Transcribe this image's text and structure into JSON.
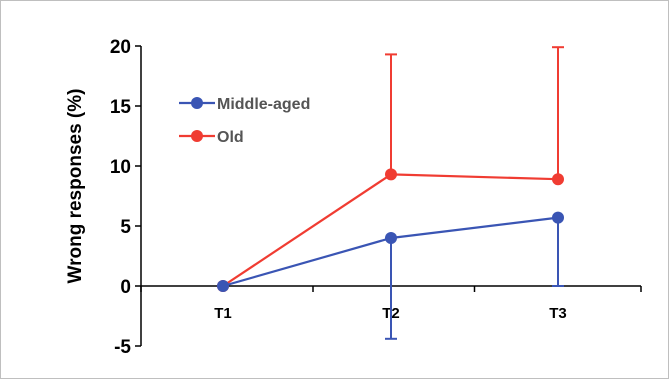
{
  "chart_data": {
    "type": "line",
    "title": "",
    "xlabel": "",
    "ylabel": "Wrong responses (%)",
    "categories": [
      "T1",
      "T2",
      "T3"
    ],
    "ylim": [
      -5,
      20
    ],
    "yticks": [
      -5,
      0,
      5,
      10,
      15,
      20
    ],
    "ytick_labels": [
      "-5",
      "0",
      "5",
      "10",
      "15",
      "20"
    ],
    "grid": false,
    "legend_position": "top-left",
    "series": [
      {
        "name": "Middle-aged",
        "color": "#3a55b4",
        "values": [
          0,
          4.0,
          5.7
        ],
        "error_lower": [
          0,
          8.4,
          5.7
        ],
        "error_upper": [
          0,
          0,
          0
        ]
      },
      {
        "name": "Old",
        "color": "#f03c32",
        "values": [
          0,
          9.3,
          8.9
        ],
        "error_lower": [
          0,
          0,
          0
        ],
        "error_upper": [
          0,
          10.0,
          11.0
        ]
      }
    ]
  }
}
